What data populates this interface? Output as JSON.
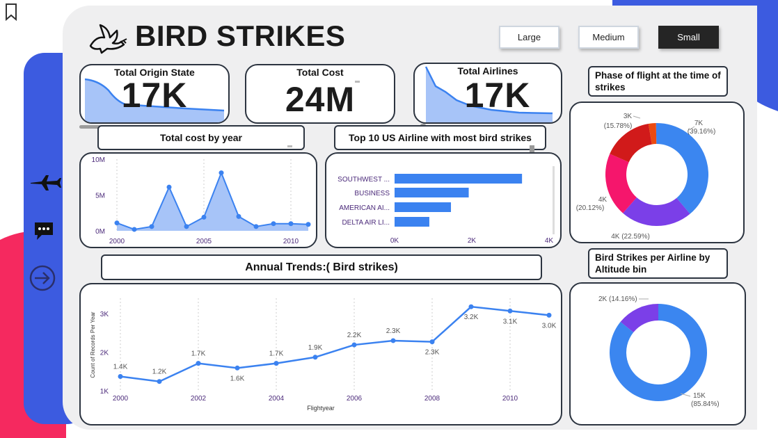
{
  "header": {
    "title": "BIRD STRIKES"
  },
  "size_buttons": [
    {
      "label": "Large",
      "active": false
    },
    {
      "label": "Medium",
      "active": false
    },
    {
      "label": "Small",
      "active": true
    }
  ],
  "kpis": {
    "origin_state": {
      "title": "Total Origin State",
      "value": "17K"
    },
    "total_cost": {
      "title": "Total Cost",
      "value": "24M"
    },
    "airlines": {
      "title": "Total Airlines",
      "value": "17K"
    }
  },
  "panels": {
    "cost_by_year": "Total cost by year",
    "top_airlines": "Top 10 US Airline with most bird strikes",
    "phase_of_flight": "Phase of flight at the time of strikes",
    "annual_trends": "Annual Trends:( Bird strikes)",
    "altitude_bin": "Bird Strikes per Airline by Altitude bin"
  },
  "colors": {
    "accent": "#3b82f0",
    "navy_sidebar": "#3c5be0",
    "pink": "#f5295f"
  },
  "sidebar_icons": [
    "airplane-icon",
    "chat-icon",
    "arrow-right-circle-icon"
  ],
  "chart_data": [
    {
      "id": "cost_by_year",
      "type": "area",
      "x": [
        2000,
        2001,
        2002,
        2003,
        2004,
        2005,
        2006,
        2007,
        2008,
        2009,
        2010,
        2011
      ],
      "values": [
        1.1,
        0.2,
        0.6,
        6.1,
        0.6,
        1.9,
        8.1,
        2.0,
        0.6,
        1.0,
        1.0,
        0.9
      ],
      "yticks": [
        {
          "v": 0,
          "label": "0M"
        },
        {
          "v": 5,
          "label": "5M"
        },
        {
          "v": 10,
          "label": "10M"
        }
      ],
      "xticks": [
        {
          "v": 2000,
          "label": "2000"
        },
        {
          "v": 2005,
          "label": "2005"
        },
        {
          "v": 2010,
          "label": "2010"
        }
      ],
      "ylim": [
        0,
        10
      ]
    },
    {
      "id": "top_airlines",
      "type": "bar",
      "categories": [
        "SOUTHWEST ...",
        "BUSINESS",
        "AMERICAN AI...",
        "DELTA AIR LI..."
      ],
      "values": [
        3300,
        1920,
        1460,
        900
      ],
      "xticks": [
        {
          "v": 0,
          "label": "0K"
        },
        {
          "v": 2000,
          "label": "2K"
        },
        {
          "v": 4000,
          "label": "4K"
        }
      ],
      "xlim": [
        0,
        4000
      ]
    },
    {
      "id": "phase_of_flight",
      "type": "pie",
      "slices": [
        {
          "value": 39.16,
          "label": "7K",
          "pct": "(39.16%)",
          "color": "#3b86f0"
        },
        {
          "value": 22.59,
          "label": "4K (22.59%)",
          "pct": "",
          "color": "#7b3fe8"
        },
        {
          "value": 20.12,
          "label": "4K",
          "pct": "(20.12%)",
          "color": "#f5166c"
        },
        {
          "value": 15.78,
          "label": "3K",
          "pct": "(15.78%)",
          "color": "#d11a1a"
        },
        {
          "value": 2.35,
          "label": "",
          "pct": "",
          "color": "#ea4a10"
        }
      ]
    },
    {
      "id": "altitude_bin",
      "type": "pie",
      "slices": [
        {
          "value": 85.84,
          "label": "15K",
          "pct": "(85.84%)",
          "color": "#3b86f0"
        },
        {
          "value": 14.16,
          "label": "2K (14.16%)",
          "pct": "",
          "color": "#7b3fe8"
        }
      ]
    },
    {
      "id": "annual_trends",
      "type": "line",
      "xlabel": "Flightyear",
      "ylabel": "Count of Records Per Year",
      "x": [
        2000,
        2001,
        2002,
        2003,
        2004,
        2005,
        2006,
        2007,
        2008,
        2009,
        2010,
        2011
      ],
      "values": [
        1370,
        1240,
        1710,
        1590,
        1710,
        1870,
        2190,
        2300,
        2270,
        3180,
        3070,
        2960
      ],
      "labels": [
        "1.4K",
        "1.2K",
        "1.7K",
        "1.6K",
        "1.7K",
        "1.9K",
        "2.2K",
        "2.3K",
        "2.3K",
        "3.2K",
        "3.1K",
        "3.0K"
      ],
      "label_above": [
        true,
        true,
        true,
        false,
        true,
        true,
        true,
        true,
        false,
        false,
        false,
        false
      ],
      "yticks": [
        {
          "v": 1000,
          "label": "1K"
        },
        {
          "v": 2000,
          "label": "2K"
        },
        {
          "v": 3000,
          "label": "3K"
        }
      ],
      "xticks": [
        {
          "v": 2000,
          "label": "2000"
        },
        {
          "v": 2002,
          "label": "2002"
        },
        {
          "v": 2004,
          "label": "2004"
        },
        {
          "v": 2006,
          "label": "2006"
        },
        {
          "v": 2008,
          "label": "2008"
        },
        {
          "v": 2010,
          "label": "2010"
        }
      ],
      "ylim": [
        1000,
        3400
      ]
    }
  ]
}
